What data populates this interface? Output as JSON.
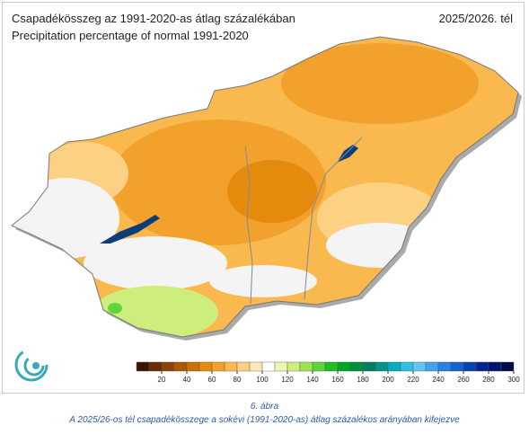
{
  "header": {
    "title": "Csapadékösszeg az 1991-2020-as átlag százalékában",
    "subtitle": "Precipitation percentage of normal 1991-2020",
    "period": "2025/2026. tél"
  },
  "colorbar": {
    "min": 0,
    "max": 300,
    "colors": [
      "#3a1600",
      "#6a2c00",
      "#8e4200",
      "#ad5800",
      "#cb6f00",
      "#e48a0c",
      "#f2a12c",
      "#f9b94e",
      "#fdd184",
      "#fee9b8",
      "#ffffff",
      "#edf7b4",
      "#cdee7c",
      "#9ee34c",
      "#5fd53a",
      "#1fc01f",
      "#00a826",
      "#00913e",
      "#00805c",
      "#00968c",
      "#00afbe",
      "#2ec0e2",
      "#5ec8f2",
      "#42a2ea",
      "#2482e0",
      "#1262cf",
      "#0642b0",
      "#022492",
      "#011272",
      "#000a48"
    ],
    "ticks": [
      20,
      40,
      60,
      80,
      100,
      120,
      140,
      160,
      180,
      200,
      220,
      240,
      260,
      280,
      300
    ]
  },
  "caption": {
    "label": "6. ábra",
    "text": "A 2025/26-os tél csapadékösszege a sokévi (1991-2020-as) átlag százalékos arányában kifejezve"
  }
}
